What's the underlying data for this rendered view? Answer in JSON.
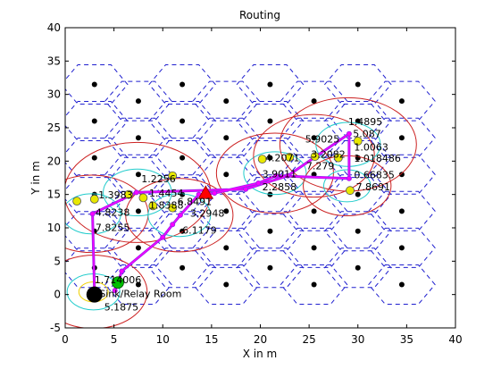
{
  "figure": {
    "title": "Routing",
    "xlabel": "X in m",
    "ylabel": "Y in m"
  },
  "chart_data": {
    "type": "scatter",
    "title": "Routing",
    "xlabel": "X in m",
    "ylabel": "Y in m",
    "xlim": [
      0,
      40
    ],
    "ylim": [
      -5,
      40
    ],
    "xticks": [
      "0",
      "5",
      "10",
      "15",
      "20",
      "25",
      "30",
      "35",
      "40"
    ],
    "yticks": [
      "-5",
      "0",
      "5",
      "10",
      "15",
      "20",
      "25",
      "30",
      "35",
      "40"
    ],
    "grid": false,
    "colors": {
      "cell_edges": "#1f1fcf",
      "cell_centers": "#000000",
      "route": "#a020f0",
      "route_overlay": "#ff00ff",
      "outer_ranges": "#cc2222",
      "inner_ranges": "#22cccc",
      "small_ranges": "#f0d000",
      "nodes": "#e8e800",
      "source": "#00c000",
      "sink": "#000000",
      "event": "#ff0000"
    },
    "hex_radius": 3.4,
    "hex_centers": [
      [
        3,
        31.5
      ],
      [
        12,
        31.5
      ],
      [
        21,
        31.5
      ],
      [
        30,
        31.5
      ],
      [
        7.5,
        29
      ],
      [
        16.5,
        29
      ],
      [
        25.5,
        29
      ],
      [
        34.5,
        29
      ],
      [
        3,
        26
      ],
      [
        12,
        26
      ],
      [
        21,
        26
      ],
      [
        30,
        26
      ],
      [
        7.5,
        23.5
      ],
      [
        16.5,
        23.5
      ],
      [
        25.5,
        23.5
      ],
      [
        34.5,
        23.5
      ],
      [
        3,
        20.5
      ],
      [
        12,
        20.5
      ],
      [
        21,
        20.5
      ],
      [
        30,
        20.5
      ],
      [
        7.5,
        18
      ],
      [
        16.5,
        18
      ],
      [
        25.5,
        18
      ],
      [
        34.5,
        18
      ],
      [
        3,
        15
      ],
      [
        12,
        15
      ],
      [
        21,
        15
      ],
      [
        30,
        15
      ],
      [
        7.5,
        12.5
      ],
      [
        16.5,
        12.5
      ],
      [
        25.5,
        12.5
      ],
      [
        34.5,
        12.5
      ],
      [
        3,
        9.5
      ],
      [
        12,
        9.5
      ],
      [
        21,
        9.5
      ],
      [
        30,
        9.5
      ],
      [
        7.5,
        7
      ],
      [
        16.5,
        7
      ],
      [
        25.5,
        7
      ],
      [
        34.5,
        7
      ],
      [
        3,
        4
      ],
      [
        12,
        4
      ],
      [
        21,
        4
      ],
      [
        30,
        4
      ],
      [
        7.5,
        1.5
      ],
      [
        16.5,
        1.5
      ],
      [
        25.5,
        1.5
      ],
      [
        34.5,
        1.5
      ]
    ],
    "sensor_nodes": [
      [
        1.2,
        14
      ],
      [
        3,
        14.3
      ],
      [
        8,
        14.5
      ],
      [
        9,
        13.3
      ],
      [
        11,
        13
      ],
      [
        20.2,
        20.3
      ],
      [
        23,
        20.6
      ],
      [
        25.6,
        20.7
      ],
      [
        28,
        20.5
      ],
      [
        30,
        23
      ],
      [
        29.2,
        15.6
      ],
      [
        11,
        17.8
      ],
      [
        6.5,
        15
      ]
    ],
    "route": [
      [
        5.1,
        0.6
      ],
      [
        5.8,
        3.5
      ],
      [
        10,
        8.6
      ],
      [
        11,
        10.5
      ],
      [
        11.8,
        11.9
      ],
      [
        13.7,
        15
      ],
      [
        15.3,
        15.2
      ],
      [
        19.8,
        16.7
      ],
      [
        21.6,
        17.8
      ],
      [
        29.1,
        17.4
      ],
      [
        29.1,
        24.1
      ],
      [
        22.8,
        17.8
      ],
      [
        18.5,
        15.8
      ],
      [
        7.3,
        15.3
      ],
      [
        2.8,
        12.1
      ],
      [
        3,
        0.3
      ]
    ],
    "range_circles": [
      {
        "c": [
          2.9,
          0.4
        ],
        "r": [
          5.5,
          2.7,
          1.5
        ]
      },
      {
        "c": [
          2.7,
          12.1
        ],
        "r": [
          5.8,
          3.0
        ]
      },
      {
        "c": [
          7.4,
          15.3
        ],
        "r": [
          7.5,
          3.5
        ]
      },
      {
        "c": [
          11.7,
          11.9
        ],
        "r": [
          5.5,
          3.2
        ]
      },
      {
        "c": [
          21.5,
          18.2
        ],
        "r": [
          6.0,
          3.2
        ]
      },
      {
        "c": [
          25.5,
          20.8
        ],
        "r": [
          6.2
        ]
      },
      {
        "c": [
          29.0,
          22.5
        ],
        "r": [
          7.0,
          3.3
        ]
      },
      {
        "c": [
          28.9,
          16.3
        ],
        "r": [
          4.5,
          2.4
        ]
      }
    ],
    "labels": [
      {
        "text": "1.2256",
        "x": 7.8,
        "y": 16.8
      },
      {
        "text": "1.3983",
        "x": 3.4,
        "y": 14.4
      },
      {
        "text": "1.4454",
        "x": 8.6,
        "y": 14.7
      },
      {
        "text": "1.8388",
        "x": 8.6,
        "y": 12.9
      },
      {
        "text": "6.8491",
        "x": 11.5,
        "y": 13.4
      },
      {
        "text": "4.8238",
        "x": 3.1,
        "y": 11.8
      },
      {
        "text": "3.2948",
        "x": 12.8,
        "y": 11.7
      },
      {
        "text": "7.8255",
        "x": 3.1,
        "y": 9.5
      },
      {
        "text": "6.1179",
        "x": 12.0,
        "y": 9.1
      },
      {
        "text": "1.4895",
        "x": 29.0,
        "y": 25.4
      },
      {
        "text": "5.087",
        "x": 29.5,
        "y": 23.6
      },
      {
        "text": "5.9025",
        "x": 24.6,
        "y": 22.8
      },
      {
        "text": "1.0063",
        "x": 29.6,
        "y": 21.6
      },
      {
        "text": "4.2071",
        "x": 20.5,
        "y": 20.0
      },
      {
        "text": "3.2082",
        "x": 25.2,
        "y": 20.5
      },
      {
        "text": "1.018486",
        "x": 29.6,
        "y": 19.9
      },
      {
        "text": "7.279",
        "x": 24.7,
        "y": 18.8
      },
      {
        "text": "3.9011",
        "x": 20.2,
        "y": 17.6
      },
      {
        "text": "0.66835",
        "x": 29.6,
        "y": 17.4
      },
      {
        "text": "2.2858",
        "x": 20.2,
        "y": 15.6
      },
      {
        "text": "7.8691",
        "x": 29.8,
        "y": 15.6
      },
      {
        "text": "1.714006",
        "x": 3.0,
        "y": 1.7
      },
      {
        "text": "Sink/Relay Room",
        "x": 3.5,
        "y": -0.4
      },
      {
        "text": "5.1875",
        "x": 4.0,
        "y": -2.4
      }
    ],
    "source_node": [
      5.4,
      1.8
    ],
    "sink_node": [
      3,
      0
    ],
    "event_node": [
      14.4,
      15.2
    ]
  }
}
